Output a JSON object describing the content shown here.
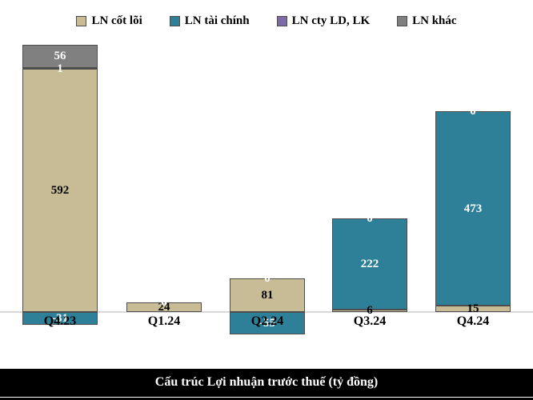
{
  "title": "Cấu trúc Lợi nhuận trước thuế (tỷ đồng)",
  "chart_data": {
    "type": "bar",
    "stacked": true,
    "title": "Cấu trúc Lợi nhuận trước thuế (tỷ đồng)",
    "xlabel": "",
    "ylabel": "tỷ đồng",
    "categories": [
      "Q4.23",
      "Q1.24",
      "Q2.24",
      "Q3.24",
      "Q4.24"
    ],
    "series": [
      {
        "name": "LN cốt lõi",
        "color": "#C8BC96",
        "label_color": "#000000",
        "values": [
          592,
          24,
          81,
          6,
          15
        ]
      },
      {
        "name": "LN tài chính",
        "color": "#2E8099",
        "label_color": "#FFFFFF",
        "values": [
          -31,
          0,
          -55,
          222,
          473
        ]
      },
      {
        "name": "LN cty LD, LK",
        "color": "#7C6BA8",
        "label_color": "#FFFFFF",
        "values": [
          1,
          0,
          0,
          0,
          0
        ]
      },
      {
        "name": "LN khác",
        "color": "#808080",
        "label_color": "#FFFFFF",
        "values": [
          56,
          0,
          0,
          0,
          0
        ]
      }
    ],
    "legend_position": "top",
    "axis": {
      "zero_line": true,
      "gridlines": false,
      "y_axis_labels_visible": false
    },
    "colors": {
      "segment_border": "#4D4D4D",
      "zero_line": "#D9D9D9",
      "title_bar_bg": "#000000",
      "title_text": "#FFFFFF"
    }
  }
}
